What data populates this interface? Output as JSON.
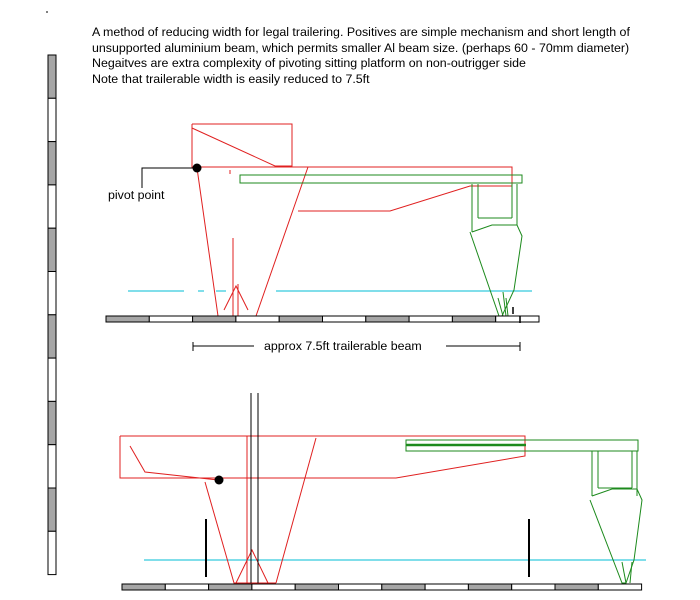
{
  "note": {
    "lines": [
      "A method of reducing width for legal trailering. Positives are simple mechanism and short length of",
      "unsupported aluminium beam, which permits smaller Al beam size. (perhaps 60 - 70mm diameter)",
      "Negaitves are extra complexity of pivoting sitting platform on non-outrigger side",
      "Note that trailerable width is easily reduced to 7.5ft"
    ]
  },
  "labels": {
    "pivot": "pivot point",
    "beam": "approx 7.5ft trailerable beam"
  },
  "colors": {
    "hull": "#e02020",
    "outrigger": "#1c8a1c",
    "waterline": "#00bcd4",
    "scale_dark": "#a6a6a6",
    "ink": "#000000"
  }
}
